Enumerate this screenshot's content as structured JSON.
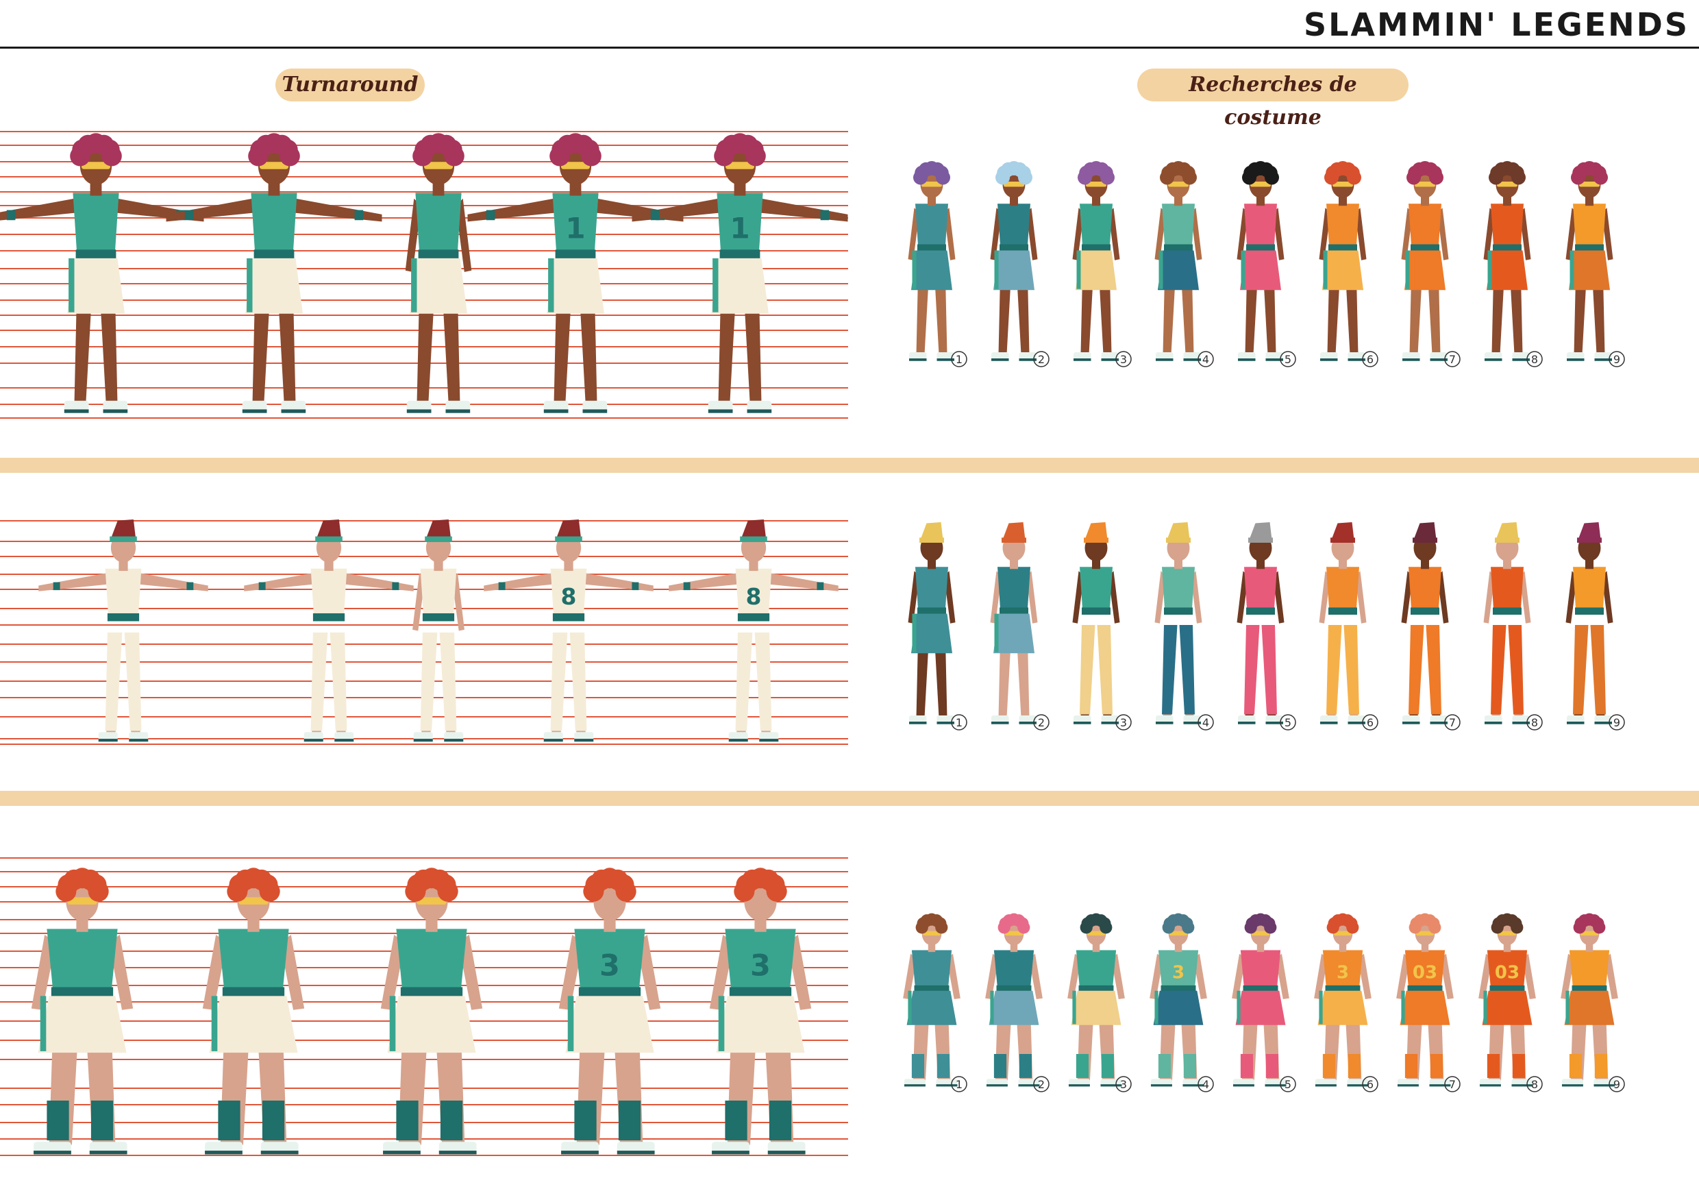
{
  "header": {
    "title": "SLAMMIN' LEGENDS"
  },
  "sections": {
    "turnaround_label": "Turnaround",
    "costume_label": "Recherches de costume"
  },
  "variant_numbers": [
    "1",
    "2",
    "3",
    "4",
    "5",
    "6",
    "7",
    "8",
    "9"
  ],
  "jersey_numbers": {
    "row1_back": "1",
    "row2_back": "8",
    "row3_back": "3",
    "row3_variant_4": "3",
    "row3_variant_6": "3",
    "row3_variant_7": "03",
    "row3_variant_8": "03"
  },
  "colors": {
    "band": "#f3d4a6",
    "pill": "#f4d3a2",
    "guide_line": "#e0563a",
    "skin_dark": "#8a4a2e",
    "skin_light": "#d7a38d",
    "teal": "#3aa58f",
    "cream": "#f5ecd8",
    "orange": "#ef7a27"
  }
}
